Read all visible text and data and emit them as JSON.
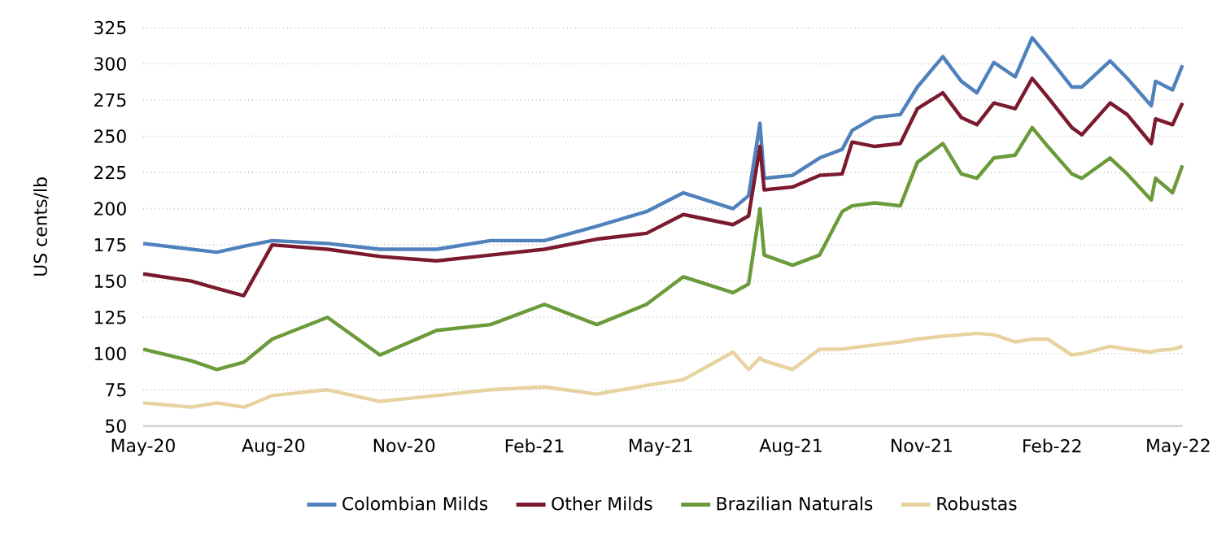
{
  "chart_data": {
    "type": "line",
    "ylabel": "US cents/lb",
    "x": [
      "2020-05-01",
      "2020-06-04",
      "2020-06-22",
      "2020-07-11",
      "2020-07-31",
      "2020-09-08",
      "2020-10-15",
      "2020-11-24",
      "2021-01-01",
      "2021-02-08",
      "2021-03-17",
      "2021-04-21",
      "2021-05-17",
      "2021-06-21",
      "2021-07-02",
      "2021-07-10",
      "2021-07-13",
      "2021-08-02",
      "2021-08-21",
      "2021-09-06",
      "2021-09-13",
      "2021-09-29",
      "2021-10-17",
      "2021-10-29",
      "2021-11-16",
      "2021-11-29",
      "2021-12-10",
      "2021-12-22",
      "2022-01-06",
      "2022-01-18",
      "2022-01-29",
      "2022-02-15",
      "2022-02-22",
      "2022-03-14",
      "2022-03-26",
      "2022-04-12",
      "2022-04-15",
      "2022-04-27",
      "2022-05-04"
    ],
    "series": [
      {
        "name": "Colombian Milds",
        "color": "#4f81bd",
        "values": [
          176,
          172,
          170,
          174,
          178,
          176,
          172,
          172,
          178,
          178,
          188,
          198,
          211,
          200,
          209,
          259,
          221,
          223,
          235,
          241,
          254,
          263,
          265,
          284,
          305,
          288,
          280,
          301,
          291,
          318,
          305,
          284,
          284,
          302,
          290,
          271,
          288,
          282,
          299
        ]
      },
      {
        "name": "Other Milds",
        "color": "#7b1a2e",
        "values": [
          155,
          150,
          145,
          140,
          175,
          172,
          167,
          164,
          168,
          172,
          179,
          183,
          196,
          189,
          195,
          243,
          213,
          215,
          223,
          224,
          246,
          243,
          245,
          269,
          280,
          263,
          258,
          273,
          269,
          290,
          277,
          256,
          251,
          273,
          265,
          245,
          262,
          258,
          273
        ]
      },
      {
        "name": "Brazilian Naturals",
        "color": "#6a9a3a",
        "values": [
          103,
          95,
          89,
          94,
          110,
          125,
          99,
          116,
          120,
          134,
          120,
          134,
          153,
          142,
          148,
          200,
          168,
          161,
          168,
          198,
          202,
          204,
          202,
          232,
          245,
          224,
          221,
          235,
          237,
          256,
          243,
          224,
          221,
          235,
          224,
          206,
          221,
          211,
          230
        ]
      },
      {
        "name": "Robustas",
        "color": "#e8d2a0",
        "values": [
          66,
          63,
          66,
          63,
          71,
          75,
          67,
          71,
          75,
          77,
          72,
          78,
          82,
          101,
          89,
          97,
          95,
          89,
          103,
          103,
          104,
          106,
          108,
          110,
          112,
          113,
          114,
          113,
          108,
          110,
          110,
          99,
          100,
          105,
          103,
          101,
          102,
          103,
          105
        ]
      }
    ],
    "xlim": [
      "2020-05-01",
      "2022-05-04"
    ],
    "xticks": [
      {
        "value": "2020-05-01",
        "label": "May-20"
      },
      {
        "value": "2020-08-01",
        "label": "Aug-20"
      },
      {
        "value": "2020-11-01",
        "label": "Nov-20"
      },
      {
        "value": "2021-02-01",
        "label": "Feb-21"
      },
      {
        "value": "2021-05-01",
        "label": "May-21"
      },
      {
        "value": "2021-08-01",
        "label": "Aug-21"
      },
      {
        "value": "2021-11-01",
        "label": "Nov-21"
      },
      {
        "value": "2022-02-01",
        "label": "Feb-22"
      },
      {
        "value": "2022-05-01",
        "label": "May-22"
      }
    ],
    "ylim": [
      50,
      325
    ],
    "yticks": [
      50,
      75,
      100,
      125,
      150,
      175,
      200,
      225,
      250,
      275,
      300,
      325
    ],
    "grid": "y",
    "legend": "bottom",
    "marker": "none",
    "line_style": "solid"
  }
}
